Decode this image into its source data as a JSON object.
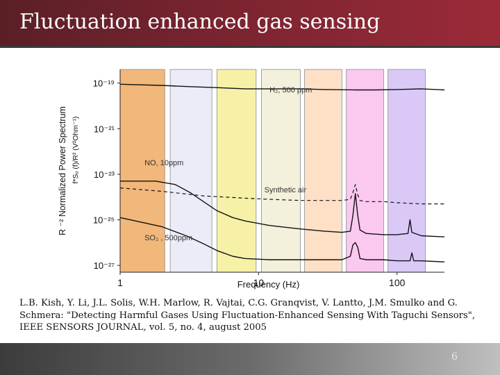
{
  "slide": {
    "title": "Fluctuation enhanced gas sensing",
    "caption_lines": [
      "L.B. Kish, Y. Li, J.L. Solis, W.H. Marlow, R. Vajtai, C.G. Granqvist, V. Lantto, J.M. Smulko and G.",
      "Schmera: \"Detecting Harmful Gases Using Fluctuation-Enhanced Sensing With Taguchi Sensors\",",
      "IEEE SENSORS JOURNAL, vol. 5, no. 4, august 2005"
    ],
    "slide_number": "6"
  },
  "chart_data": {
    "type": "line",
    "xlabel": "Frequency (Hz)",
    "ylabel_line1": "R ⁻² Normalized Power Spectrum",
    "ylabel_line2": "f*Sᵤ (f)/R² (V²Ohm⁻¹)",
    "x_scale": "log",
    "y_scale": "log",
    "xlim": [
      1,
      220
    ],
    "ylim_exp": [
      -27.3,
      -18.4
    ],
    "x_ticks": [
      {
        "value": 1,
        "label": "1"
      },
      {
        "value": 10,
        "label": "10"
      },
      {
        "value": 100,
        "label": "100"
      }
    ],
    "y_ticks": [
      {
        "exp": -19,
        "label": "10⁻¹⁹"
      },
      {
        "exp": -21,
        "label": "10⁻²¹"
      },
      {
        "exp": -23,
        "label": "10⁻²³"
      },
      {
        "exp": -25,
        "label": "10⁻²⁵"
      },
      {
        "exp": -27,
        "label": "10⁻²⁷"
      }
    ],
    "bands": [
      {
        "f1": 1.0,
        "f2": 2.1,
        "color": "#f2b77a"
      },
      {
        "f1": 2.3,
        "f2": 4.6,
        "color": "#ececf8"
      },
      {
        "f1": 5.0,
        "f2": 9.6,
        "color": "#f7f1a8"
      },
      {
        "f1": 10.5,
        "f2": 20.0,
        "color": "#f3f0dc"
      },
      {
        "f1": 21.5,
        "f2": 40.0,
        "color": "#fde0c6"
      },
      {
        "f1": 43.0,
        "f2": 80.0,
        "color": "#fbc8f0"
      },
      {
        "f1": 86.0,
        "f2": 160.0,
        "color": "#dac9f7"
      }
    ],
    "annotations": [
      {
        "text": "H₂, 500 ppm",
        "f": 12,
        "exp": -19.4
      },
      {
        "text": "NO, 10ppm",
        "f": 1.5,
        "exp": -22.6
      },
      {
        "text": "Synthetic air",
        "f": 11,
        "exp": -23.8
      },
      {
        "text": "SO₂ , 500ppm",
        "f": 1.5,
        "exp": -25.9
      }
    ],
    "series": [
      {
        "label": "H₂, 500 ppm",
        "style": "solid",
        "width": 1.4,
        "x": [
          1,
          2,
          3,
          5,
          8,
          12,
          20,
          30,
          50,
          70,
          100,
          150,
          220
        ],
        "exp": [
          -19.05,
          -19.1,
          -19.15,
          -19.2,
          -19.25,
          -19.25,
          -19.25,
          -19.28,
          -19.3,
          -19.3,
          -19.28,
          -19.25,
          -19.3
        ]
      },
      {
        "label": "NO, 10ppm",
        "style": "solid",
        "width": 1.4,
        "x": [
          1,
          1.8,
          2.5,
          3.2,
          4,
          5,
          6.5,
          8,
          12,
          20,
          30,
          40,
          46,
          48,
          50,
          52,
          54,
          60,
          80,
          100,
          120,
          124,
          128,
          150,
          220
        ],
        "exp": [
          -23.3,
          -23.3,
          -23.45,
          -23.8,
          -24.2,
          -24.6,
          -24.9,
          -25.05,
          -25.25,
          -25.4,
          -25.5,
          -25.55,
          -25.5,
          -24.8,
          -23.85,
          -24.8,
          -25.45,
          -25.6,
          -25.65,
          -25.65,
          -25.6,
          -25.0,
          -25.55,
          -25.7,
          -25.75
        ]
      },
      {
        "label": "SO₂ , 500ppm",
        "style": "solid",
        "width": 1.4,
        "x": [
          1,
          2,
          3,
          4,
          5,
          6.5,
          8,
          12,
          20,
          30,
          40,
          46,
          48,
          50,
          52,
          54,
          60,
          80,
          100,
          124,
          128,
          132,
          150,
          220
        ],
        "exp": [
          -24.9,
          -25.3,
          -25.7,
          -26.05,
          -26.35,
          -26.6,
          -26.7,
          -26.75,
          -26.75,
          -26.75,
          -26.75,
          -26.6,
          -26.1,
          -26.0,
          -26.2,
          -26.7,
          -26.75,
          -26.75,
          -26.8,
          -26.8,
          -26.45,
          -26.8,
          -26.8,
          -26.85
        ]
      },
      {
        "label": "Synthetic air",
        "style": "dashed",
        "width": 1.2,
        "x": [
          1,
          2,
          4,
          8,
          12,
          20,
          30,
          40,
          46,
          48,
          50,
          52,
          54,
          60,
          80,
          100,
          150,
          220
        ],
        "exp": [
          -23.6,
          -23.75,
          -23.95,
          -24.05,
          -24.1,
          -24.15,
          -24.15,
          -24.15,
          -24.1,
          -23.8,
          -23.45,
          -23.9,
          -24.15,
          -24.2,
          -24.2,
          -24.25,
          -24.3,
          -24.3
        ]
      }
    ]
  }
}
